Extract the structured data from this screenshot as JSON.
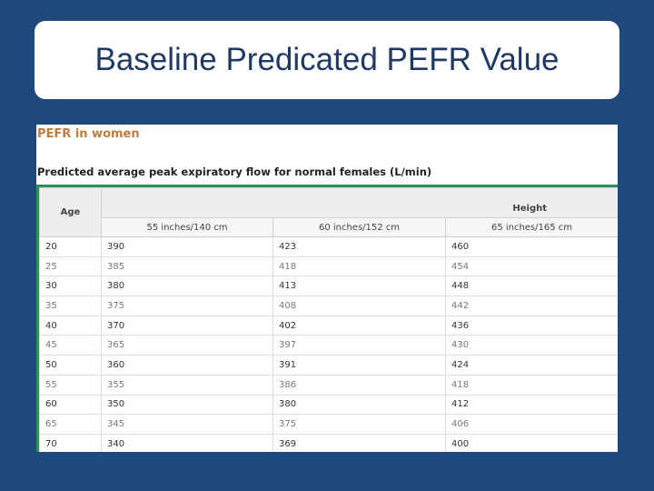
{
  "slide": {
    "title": "Baseline Predicated PEFR Value"
  },
  "panel": {
    "section_title": "PEFR in women",
    "caption": "Predicted average peak expiratory flow for normal females (L/min)",
    "colors": {
      "accent_orange": "#c27c3a",
      "rule_green": "#2f8f5a",
      "slide_bg": "#1f497d"
    }
  },
  "table": {
    "age_header": "Age",
    "height_header": "Height",
    "height_columns": [
      "55 inches/140 cm",
      "60 inches/152 cm",
      "65 inches/165 cm"
    ],
    "rows": [
      [
        "20",
        "390",
        "423",
        "460"
      ],
      [
        "25",
        "385",
        "418",
        "454"
      ],
      [
        "30",
        "380",
        "413",
        "448"
      ],
      [
        "35",
        "375",
        "408",
        "442"
      ],
      [
        "40",
        "370",
        "402",
        "436"
      ],
      [
        "45",
        "365",
        "397",
        "430"
      ],
      [
        "50",
        "360",
        "391",
        "424"
      ],
      [
        "55",
        "355",
        "386",
        "418"
      ],
      [
        "60",
        "350",
        "380",
        "412"
      ],
      [
        "65",
        "345",
        "375",
        "406"
      ],
      [
        "70",
        "340",
        "369",
        "400"
      ]
    ]
  }
}
